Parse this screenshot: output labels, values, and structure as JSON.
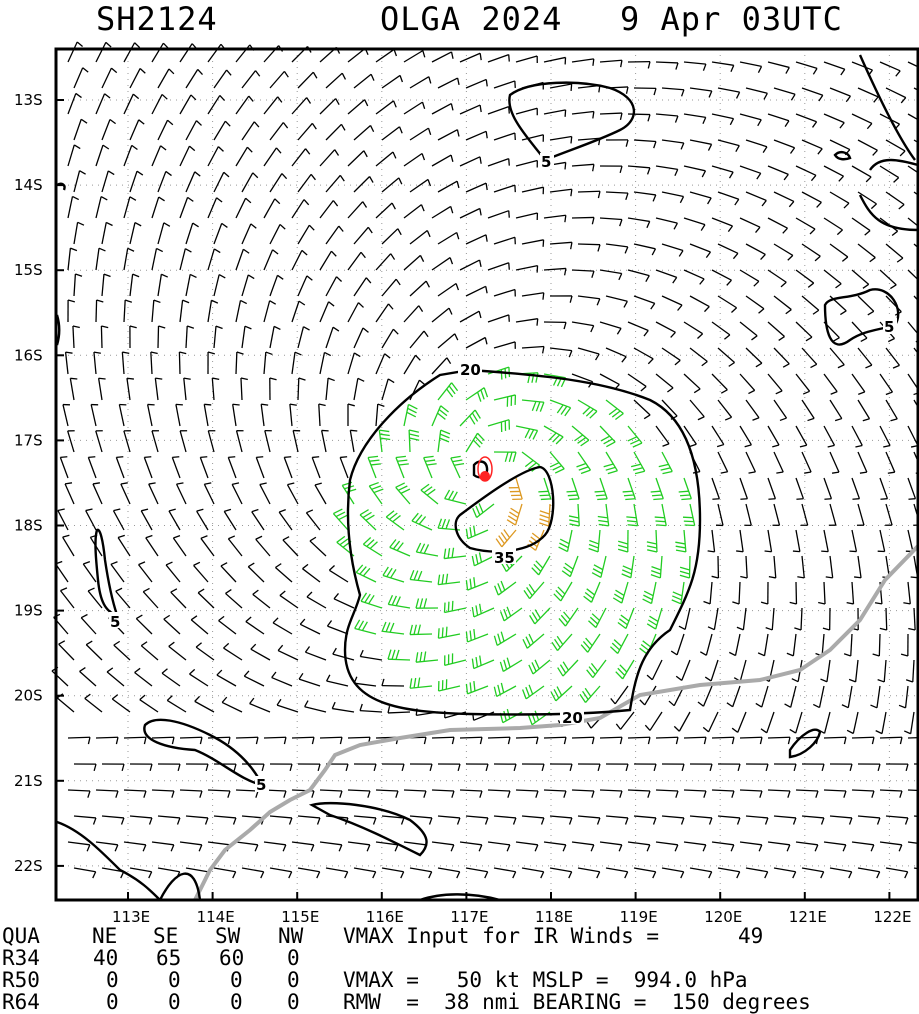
{
  "header": {
    "storm_id": "SH2124",
    "storm_name_year": "OLGA 2024",
    "datetime": "9 Apr 03UTC"
  },
  "map": {
    "lat_labels": [
      "13S",
      "14S",
      "15S",
      "16S",
      "17S",
      "18S",
      "19S",
      "20S",
      "21S",
      "22S"
    ],
    "lon_labels": [
      "113E",
      "114E",
      "115E",
      "116E",
      "117E",
      "118E",
      "119E",
      "120E",
      "121E",
      "122E"
    ],
    "contour_labels": [
      "5",
      "5",
      "5",
      "5",
      "20",
      "20",
      "35"
    ],
    "colors": {
      "below_34kt": "#000000",
      "34_49kt": "#22cc22",
      "50_63kt": "#dd9922",
      "center": "#ff2222",
      "coastline": "#aaaaaa",
      "grid": "#999999"
    },
    "center": {
      "lat": -17.45,
      "lon": 117.28
    }
  },
  "footer": {
    "row1": [
      "QUA",
      "NE",
      "SE",
      "SW",
      "NW"
    ],
    "row2": [
      "R34",
      "40",
      "65",
      "60",
      "0"
    ],
    "row3": [
      "R50",
      "0",
      "0",
      "0",
      "0"
    ],
    "row4": [
      "R64",
      "0",
      "0",
      "0",
      "0"
    ],
    "vmax_input_label": "VMAX Input for IR Winds =",
    "vmax_input_value": "49",
    "vmax_line": "VMAX =   50 kt MSLP =  994.0 hPa",
    "rmw_line": "RMW  =  38 nmi BEARING =  150 degrees"
  }
}
